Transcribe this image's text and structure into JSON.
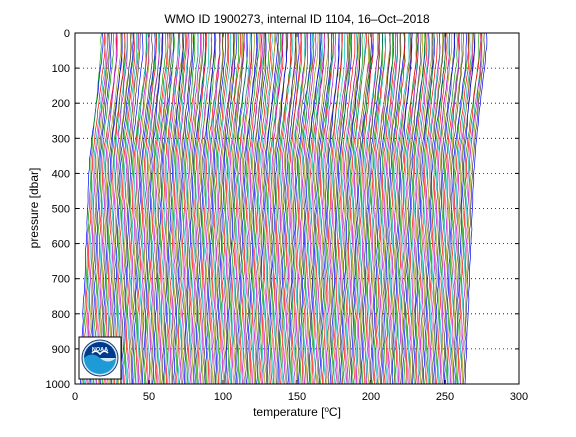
{
  "chart_data": {
    "type": "line",
    "title": "WMO ID 1900273, internal ID 1104, 16–Oct–2018",
    "xlabel_prefix": "temperature [",
    "xlabel_unit": "C",
    "xlabel_suffix": "]",
    "ylabel": "pressure [dbar]",
    "xlim": [
      0,
      300
    ],
    "ylim": [
      0,
      1000
    ],
    "y_reversed": true,
    "x_ticks": [
      "0",
      "50",
      "100",
      "150",
      "200",
      "250",
      "300"
    ],
    "y_ticks": [
      "0",
      "100",
      "200",
      "300",
      "400",
      "500",
      "600",
      "700",
      "800",
      "900",
      "1000"
    ],
    "x_tick_values": [
      0,
      50,
      100,
      150,
      200,
      250,
      300
    ],
    "y_tick_values": [
      0,
      100,
      200,
      300,
      400,
      500,
      600,
      700,
      800,
      900,
      1000
    ],
    "horizontal_grid": "dotted",
    "profile_offset_range": [
      0,
      260
    ],
    "profile_count": 260,
    "series_colors": [
      "#0000ff",
      "#00a000",
      "#ff0000",
      "#00bfbf",
      "#bf00bf",
      "#9a9a00",
      "#404040"
    ],
    "logo": {
      "text": "NOAA",
      "colors": {
        "ring": "#ffffff",
        "top": "#003a8c",
        "bottom": "#1e9bd7"
      }
    }
  }
}
